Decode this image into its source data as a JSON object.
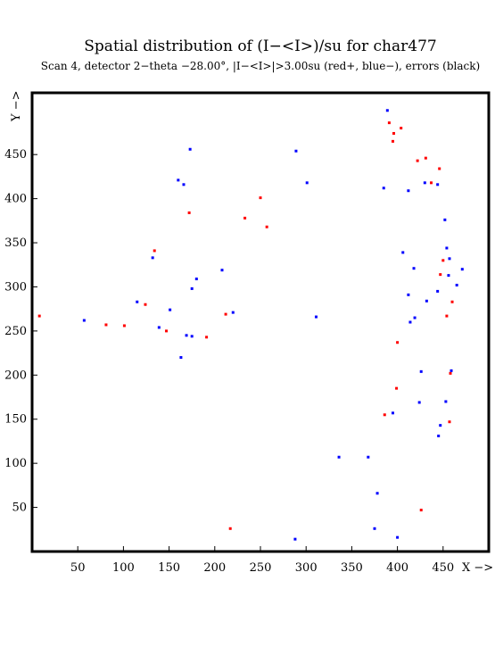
{
  "chart_data": {
    "type": "scatter",
    "title": "Spatial distribution of (I−<I>)/su for char477",
    "subtitle": "Scan  4, detector 2−theta −28.00°, |I−<I>|>3.00su (red+, blue−), errors (black)",
    "xlabel": "X −>",
    "ylabel": "Y −>",
    "xlim": [
      0,
      500
    ],
    "ylim": [
      0,
      520
    ],
    "xticks": [
      50,
      100,
      150,
      200,
      250,
      300,
      350,
      400,
      450
    ],
    "yticks": [
      50,
      100,
      150,
      200,
      250,
      300,
      350,
      400,
      450
    ],
    "legend": "none",
    "series": [
      {
        "color": "#ff0000",
        "points": [
          [
            8,
            267
          ],
          [
            81,
            257
          ],
          [
            101,
            256
          ],
          [
            124,
            280
          ],
          [
            134,
            341
          ],
          [
            147,
            250
          ],
          [
            172,
            384
          ],
          [
            191,
            243
          ],
          [
            212,
            269
          ],
          [
            217,
            26
          ],
          [
            233,
            378
          ],
          [
            250,
            401
          ],
          [
            257,
            368
          ],
          [
            386,
            155
          ],
          [
            391,
            486
          ],
          [
            395,
            465
          ],
          [
            396,
            474
          ],
          [
            399,
            185
          ],
          [
            400,
            237
          ],
          [
            404,
            480
          ],
          [
            422,
            443
          ],
          [
            426,
            47
          ],
          [
            431,
            446
          ],
          [
            437,
            418
          ],
          [
            446,
            434
          ],
          [
            447,
            314
          ],
          [
            450,
            330
          ],
          [
            454,
            267
          ],
          [
            457,
            147
          ],
          [
            458,
            202
          ],
          [
            460,
            283
          ]
        ]
      },
      {
        "color": "#0000ff",
        "points": [
          [
            57,
            262
          ],
          [
            115,
            283
          ],
          [
            132,
            333
          ],
          [
            139,
            254
          ],
          [
            151,
            274
          ],
          [
            160,
            421
          ],
          [
            163,
            220
          ],
          [
            166,
            416
          ],
          [
            169,
            245
          ],
          [
            173,
            456
          ],
          [
            175,
            298
          ],
          [
            175,
            244
          ],
          [
            180,
            309
          ],
          [
            208,
            319
          ],
          [
            220,
            271
          ],
          [
            288,
            14
          ],
          [
            289,
            454
          ],
          [
            301,
            418
          ],
          [
            311,
            266
          ],
          [
            336,
            107
          ],
          [
            368,
            107
          ],
          [
            375,
            26
          ],
          [
            378,
            66
          ],
          [
            385,
            412
          ],
          [
            389,
            500
          ],
          [
            395,
            157
          ],
          [
            400,
            16
          ],
          [
            406,
            339
          ],
          [
            412,
            409
          ],
          [
            412,
            291
          ],
          [
            414,
            260
          ],
          [
            418,
            321
          ],
          [
            419,
            265
          ],
          [
            424,
            169
          ],
          [
            426,
            204
          ],
          [
            430,
            418
          ],
          [
            432,
            284
          ],
          [
            444,
            295
          ],
          [
            444,
            416
          ],
          [
            445,
            131
          ],
          [
            447,
            143
          ],
          [
            452,
            376
          ],
          [
            453,
            170
          ],
          [
            454,
            344
          ],
          [
            456,
            313
          ],
          [
            457,
            332
          ],
          [
            459,
            205
          ],
          [
            465,
            302
          ],
          [
            471,
            320
          ]
        ]
      }
    ]
  }
}
